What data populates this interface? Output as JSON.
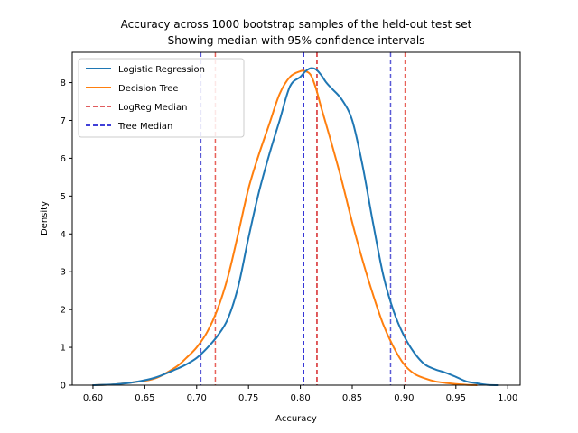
{
  "chart_data": {
    "type": "line",
    "title": "Accuracy across 1000 bootstrap samples of the held-out test set",
    "subtitle": "Showing median with 95% confidence intervals",
    "xlabel": "Accuracy",
    "ylabel": "Density",
    "xlim": [
      0.58,
      1.012
    ],
    "ylim": [
      0,
      8.8
    ],
    "x_ticks": [
      "0.60",
      "0.65",
      "0.70",
      "0.75",
      "0.80",
      "0.85",
      "0.90",
      "0.95",
      "1.00"
    ],
    "x_tick_values": [
      0.6,
      0.65,
      0.7,
      0.75,
      0.8,
      0.85,
      0.9,
      0.95,
      1.0
    ],
    "y_ticks": [
      "0",
      "1",
      "2",
      "3",
      "4",
      "5",
      "6",
      "7",
      "8"
    ],
    "y_tick_values": [
      0,
      1,
      2,
      3,
      4,
      5,
      6,
      7,
      8
    ],
    "grid": false,
    "legend_position": "top-left",
    "series": [
      {
        "name": "Logistic Regression",
        "color": "#1f77b4",
        "x": [
          0.6,
          0.62,
          0.64,
          0.66,
          0.68,
          0.69,
          0.7,
          0.71,
          0.72,
          0.73,
          0.74,
          0.75,
          0.76,
          0.77,
          0.78,
          0.79,
          0.8,
          0.805,
          0.81,
          0.815,
          0.82,
          0.825,
          0.83,
          0.84,
          0.85,
          0.86,
          0.87,
          0.88,
          0.89,
          0.9,
          0.91,
          0.92,
          0.93,
          0.94,
          0.95,
          0.96,
          0.97,
          0.98,
          0.99
        ],
        "y": [
          0.0,
          0.02,
          0.08,
          0.2,
          0.42,
          0.55,
          0.72,
          0.98,
          1.3,
          1.75,
          2.6,
          3.9,
          5.1,
          6.1,
          7.0,
          7.9,
          8.15,
          8.3,
          8.38,
          8.35,
          8.2,
          8.0,
          7.85,
          7.55,
          7.0,
          5.8,
          4.3,
          2.9,
          1.95,
          1.3,
          0.85,
          0.55,
          0.42,
          0.33,
          0.22,
          0.1,
          0.05,
          0.01,
          0.0
        ]
      },
      {
        "name": "Decision Tree",
        "color": "#ff7f0e",
        "x": [
          0.6,
          0.62,
          0.64,
          0.66,
          0.68,
          0.69,
          0.7,
          0.71,
          0.72,
          0.73,
          0.74,
          0.75,
          0.76,
          0.77,
          0.78,
          0.79,
          0.8,
          0.805,
          0.81,
          0.815,
          0.82,
          0.83,
          0.84,
          0.85,
          0.86,
          0.87,
          0.88,
          0.89,
          0.9,
          0.91,
          0.92,
          0.93,
          0.94,
          0.95,
          0.96,
          0.97
        ],
        "y": [
          0.0,
          0.02,
          0.08,
          0.18,
          0.48,
          0.72,
          1.0,
          1.4,
          2.0,
          2.85,
          4.0,
          5.2,
          6.1,
          6.9,
          7.7,
          8.15,
          8.3,
          8.3,
          8.2,
          7.85,
          7.35,
          6.4,
          5.4,
          4.3,
          3.3,
          2.4,
          1.6,
          1.0,
          0.55,
          0.3,
          0.18,
          0.1,
          0.06,
          0.03,
          0.01,
          0.0
        ]
      }
    ],
    "reference_lines": [
      {
        "name": "LogReg Median",
        "x": 0.816,
        "color": "#d62728",
        "style": "dashed",
        "in_legend": true
      },
      {
        "name": "Tree Median",
        "x": 0.803,
        "color": "#0000cc",
        "style": "dashed",
        "in_legend": true
      },
      {
        "x": 0.718,
        "color": "#e8625a",
        "style": "dashed",
        "in_legend": false
      },
      {
        "x": 0.901,
        "color": "#e8625a",
        "style": "dashed",
        "in_legend": false
      },
      {
        "x": 0.704,
        "color": "#5a5ad6",
        "style": "dashed",
        "in_legend": false
      },
      {
        "x": 0.887,
        "color": "#5a5ad6",
        "style": "dashed",
        "in_legend": false
      }
    ]
  }
}
